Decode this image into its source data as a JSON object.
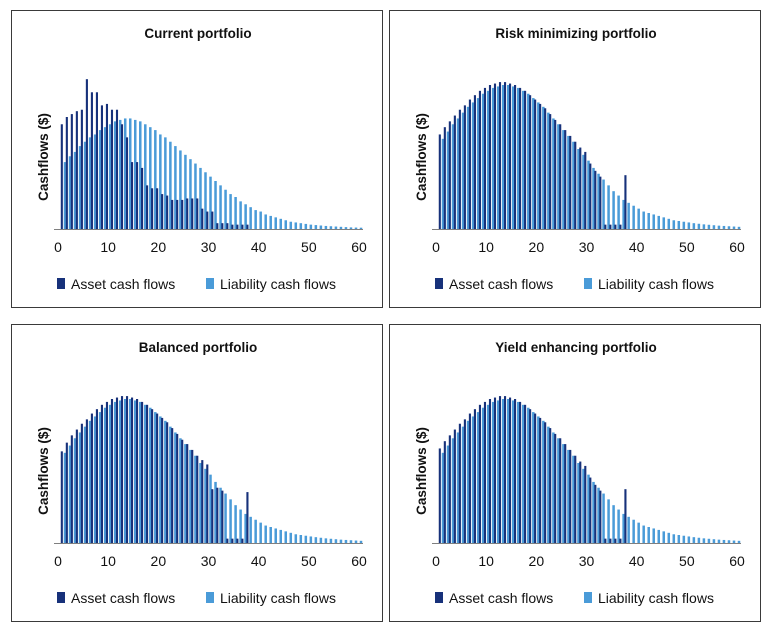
{
  "colors": {
    "asset": "#17317a",
    "liability": "#4a9bd8",
    "axis": "#7f7f7f",
    "border": "#3a3a3a"
  },
  "chart_data": [
    {
      "type": "bar",
      "title": "Current portfolio",
      "ylabel": "Cashflows ($)",
      "xlabel": "",
      "xlim": [
        0,
        60
      ],
      "x_ticks": [
        "0",
        "10",
        "20",
        "30",
        "40",
        "50",
        "60"
      ],
      "legend": {
        "placement": "bottom",
        "entries": [
          "Asset cash flows",
          "Liability cash flows"
        ]
      },
      "series": [
        {
          "name": "Asset cash flows",
          "x": [
            1,
            2,
            3,
            4,
            5,
            6,
            7,
            8,
            9,
            10,
            11,
            12,
            13,
            14,
            15,
            16,
            17,
            18,
            19,
            20,
            21,
            22,
            23,
            24,
            25,
            26,
            27,
            28,
            29,
            30,
            31,
            32,
            33,
            34,
            35,
            36,
            37,
            38
          ],
          "values": [
            72,
            77,
            79,
            81,
            82,
            103,
            94,
            94,
            85,
            86,
            82,
            82,
            72,
            63,
            46,
            46,
            42,
            30,
            28,
            28,
            24,
            23,
            20,
            20,
            20,
            21,
            21,
            21,
            14,
            12,
            12,
            4,
            4,
            4,
            3,
            3,
            3,
            3
          ]
        },
        {
          "name": "Liability cash flows",
          "x": [
            1,
            2,
            3,
            4,
            5,
            6,
            7,
            8,
            9,
            10,
            11,
            12,
            13,
            14,
            15,
            16,
            17,
            18,
            19,
            20,
            21,
            22,
            23,
            24,
            25,
            26,
            27,
            28,
            29,
            30,
            31,
            32,
            33,
            34,
            35,
            36,
            37,
            38,
            39,
            40,
            41,
            42,
            43,
            44,
            45,
            46,
            47,
            48,
            49,
            50,
            51,
            52,
            53,
            54,
            55,
            56,
            57,
            58,
            59,
            60
          ],
          "values": [
            46,
            50,
            53,
            57,
            60,
            63,
            65,
            68,
            70,
            72,
            74,
            75,
            76,
            76,
            75,
            74,
            72,
            70,
            68,
            65,
            63,
            60,
            57,
            54,
            51,
            48,
            45,
            42,
            39,
            36,
            33,
            30,
            27,
            24,
            22,
            19,
            17,
            15,
            13,
            12,
            10,
            9,
            8,
            7,
            6,
            5,
            4.5,
            4,
            3.5,
            3,
            2.7,
            2.4,
            2.1,
            1.9,
            1.7,
            1.5,
            1.3,
            1.1,
            1,
            0.9
          ]
        }
      ],
      "ylim": [
        0,
        110
      ]
    },
    {
      "type": "bar",
      "title": "Risk minimizing portfolio",
      "ylabel": "Cashflows ($)",
      "xlabel": "",
      "xlim": [
        0,
        60
      ],
      "x_ticks": [
        "0",
        "10",
        "20",
        "30",
        "40",
        "50",
        "60"
      ],
      "legend": {
        "placement": "bottom",
        "entries": [
          "Asset cash flows",
          "Liability cash flows"
        ]
      },
      "series": [
        {
          "name": "Asset cash flows",
          "x": [
            1,
            2,
            3,
            4,
            5,
            6,
            7,
            8,
            9,
            10,
            11,
            12,
            13,
            14,
            15,
            16,
            17,
            18,
            19,
            20,
            21,
            22,
            23,
            24,
            25,
            26,
            27,
            28,
            29,
            30,
            31,
            32,
            33,
            34,
            35,
            36,
            37,
            38
          ],
          "values": [
            65,
            70,
            74,
            78,
            82,
            85,
            89,
            92,
            95,
            97,
            99,
            100,
            101,
            101,
            100,
            99,
            97,
            95,
            92,
            89,
            86,
            83,
            79,
            75,
            72,
            68,
            64,
            60,
            56,
            53,
            45,
            40,
            36,
            3,
            3,
            3,
            3,
            37
          ]
        },
        {
          "name": "Liability cash flows",
          "x": [
            1,
            2,
            3,
            4,
            5,
            6,
            7,
            8,
            9,
            10,
            11,
            12,
            13,
            14,
            15,
            16,
            17,
            18,
            19,
            20,
            21,
            22,
            23,
            24,
            25,
            26,
            27,
            28,
            29,
            30,
            31,
            32,
            33,
            34,
            35,
            36,
            37,
            38,
            39,
            40,
            41,
            42,
            43,
            44,
            45,
            46,
            47,
            48,
            49,
            50,
            51,
            52,
            53,
            54,
            55,
            56,
            57,
            58,
            59,
            60
          ],
          "values": [
            62,
            67,
            72,
            76,
            80,
            84,
            87,
            90,
            93,
            95,
            97,
            98,
            99,
            99,
            98,
            97,
            95,
            93,
            90,
            87,
            84,
            80,
            76,
            72,
            68,
            64,
            60,
            55,
            51,
            47,
            42,
            38,
            34,
            30,
            26,
            23,
            20,
            18,
            16,
            14,
            12,
            11,
            10,
            9,
            8,
            7,
            6,
            5.5,
            5,
            4.5,
            4,
            3.6,
            3.2,
            2.9,
            2.6,
            2.3,
            2.1,
            1.9,
            1.7,
            1.5
          ]
        }
      ],
      "ylim": [
        0,
        110
      ]
    },
    {
      "type": "bar",
      "title": "Balanced portfolio",
      "ylabel": "Cashflows ($)",
      "xlabel": "",
      "xlim": [
        0,
        60
      ],
      "x_ticks": [
        "0",
        "10",
        "20",
        "30",
        "40",
        "50",
        "60"
      ],
      "legend": {
        "placement": "bottom",
        "entries": [
          "Asset cash flows",
          "Liability cash flows"
        ]
      },
      "series": [
        {
          "name": "Asset cash flows",
          "x": [
            1,
            2,
            3,
            4,
            5,
            6,
            7,
            8,
            9,
            10,
            11,
            12,
            13,
            14,
            15,
            16,
            17,
            18,
            19,
            20,
            21,
            22,
            23,
            24,
            25,
            26,
            27,
            28,
            29,
            30,
            31,
            32,
            33,
            34,
            35,
            36,
            37,
            38
          ],
          "values": [
            63,
            69,
            74,
            78,
            82,
            85,
            89,
            92,
            95,
            97,
            99,
            100,
            101,
            101,
            100,
            99,
            97,
            95,
            92,
            89,
            86,
            83,
            79,
            75,
            71,
            68,
            64,
            60,
            57,
            54,
            37,
            38,
            36,
            3,
            3,
            3,
            3,
            35
          ]
        },
        {
          "name": "Liability cash flows",
          "x": [
            1,
            2,
            3,
            4,
            5,
            6,
            7,
            8,
            9,
            10,
            11,
            12,
            13,
            14,
            15,
            16,
            17,
            18,
            19,
            20,
            21,
            22,
            23,
            24,
            25,
            26,
            27,
            28,
            29,
            30,
            31,
            32,
            33,
            34,
            35,
            36,
            37,
            38,
            39,
            40,
            41,
            42,
            43,
            44,
            45,
            46,
            47,
            48,
            49,
            50,
            51,
            52,
            53,
            54,
            55,
            56,
            57,
            58,
            59,
            60
          ],
          "values": [
            62,
            67,
            72,
            76,
            80,
            84,
            87,
            90,
            93,
            95,
            97,
            98,
            99,
            99,
            98,
            97,
            95,
            93,
            90,
            87,
            84,
            80,
            76,
            72,
            68,
            64,
            60,
            55,
            51,
            47,
            42,
            38,
            34,
            30,
            26,
            23,
            20,
            18,
            16,
            14,
            12,
            11,
            10,
            9,
            8,
            7,
            6,
            5.5,
            5,
            4.5,
            4,
            3.6,
            3.2,
            2.9,
            2.6,
            2.3,
            2.1,
            1.9,
            1.7,
            1.5
          ]
        }
      ],
      "ylim": [
        0,
        110
      ]
    },
    {
      "type": "bar",
      "title": "Yield enhancing portfolio",
      "ylabel": "Cashflows ($)",
      "xlabel": "",
      "xlim": [
        0,
        60
      ],
      "x_ticks": [
        "0",
        "10",
        "20",
        "30",
        "40",
        "50",
        "60"
      ],
      "legend": {
        "placement": "bottom",
        "entries": [
          "Asset cash flows",
          "Liability cash flows"
        ]
      },
      "series": [
        {
          "name": "Asset cash flows",
          "x": [
            1,
            2,
            3,
            4,
            5,
            6,
            7,
            8,
            9,
            10,
            11,
            12,
            13,
            14,
            15,
            16,
            17,
            18,
            19,
            20,
            21,
            22,
            23,
            24,
            25,
            26,
            27,
            28,
            29,
            30,
            31,
            32,
            33,
            34,
            35,
            36,
            37,
            38
          ],
          "values": [
            65,
            70,
            74,
            78,
            82,
            85,
            89,
            92,
            95,
            97,
            99,
            100,
            101,
            101,
            100,
            99,
            97,
            95,
            92,
            89,
            86,
            83,
            79,
            75,
            72,
            68,
            64,
            60,
            56,
            53,
            45,
            40,
            36,
            3,
            3,
            3,
            3,
            37
          ]
        },
        {
          "name": "Liability cash flows",
          "x": [
            1,
            2,
            3,
            4,
            5,
            6,
            7,
            8,
            9,
            10,
            11,
            12,
            13,
            14,
            15,
            16,
            17,
            18,
            19,
            20,
            21,
            22,
            23,
            24,
            25,
            26,
            27,
            28,
            29,
            30,
            31,
            32,
            33,
            34,
            35,
            36,
            37,
            38,
            39,
            40,
            41,
            42,
            43,
            44,
            45,
            46,
            47,
            48,
            49,
            50,
            51,
            52,
            53,
            54,
            55,
            56,
            57,
            58,
            59,
            60
          ],
          "values": [
            62,
            67,
            72,
            76,
            80,
            84,
            87,
            90,
            93,
            95,
            97,
            98,
            99,
            99,
            98,
            97,
            95,
            93,
            90,
            87,
            84,
            80,
            76,
            72,
            68,
            64,
            60,
            55,
            51,
            47,
            42,
            38,
            34,
            30,
            26,
            23,
            20,
            18,
            16,
            14,
            12,
            11,
            10,
            9,
            8,
            7,
            6,
            5.5,
            5,
            4.5,
            4,
            3.6,
            3.2,
            2.9,
            2.6,
            2.3,
            2.1,
            1.9,
            1.7,
            1.5
          ]
        }
      ],
      "ylim": [
        0,
        110
      ]
    }
  ]
}
